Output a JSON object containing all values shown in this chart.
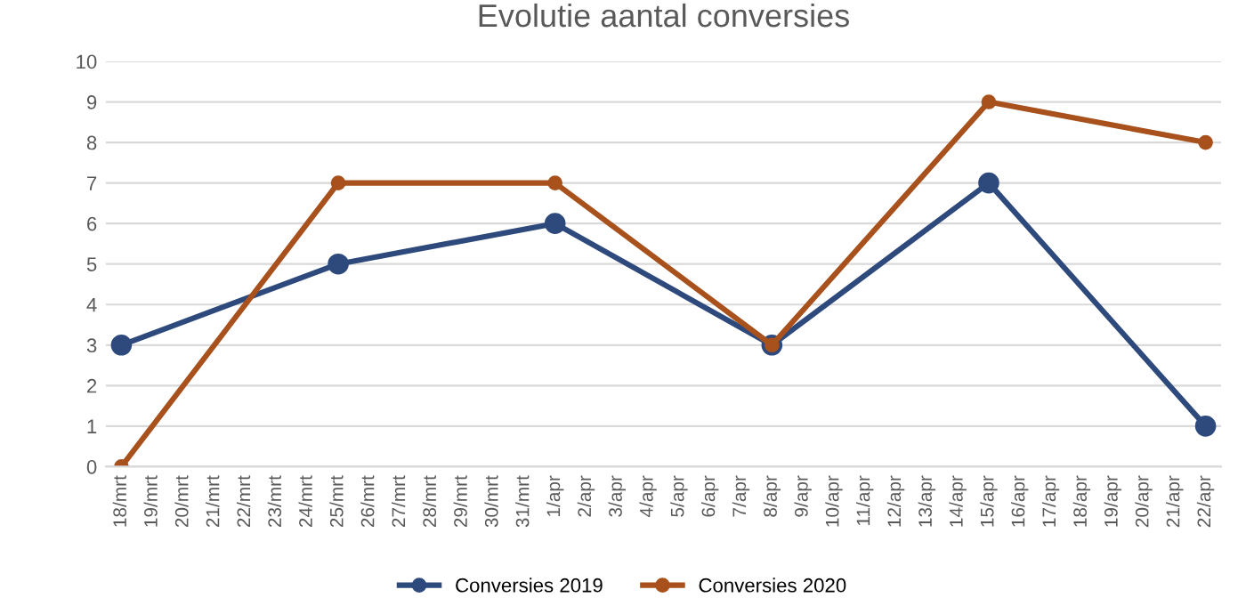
{
  "chart_data": {
    "type": "line",
    "title": "Evolutie aantal conversies",
    "categories": [
      "18/mrt",
      "19/mrt",
      "20/mrt",
      "21/mrt",
      "22/mrt",
      "23/mrt",
      "24/mrt",
      "25/mrt",
      "26/mrt",
      "27/mrt",
      "28/mrt",
      "29/mrt",
      "30/mrt",
      "31/mrt",
      "1/apr",
      "2/apr",
      "3/apr",
      "4/apr",
      "5/apr",
      "6/apr",
      "7/apr",
      "8/apr",
      "9/apr",
      "10/apr",
      "11/apr",
      "12/apr",
      "13/apr",
      "14/apr",
      "15/apr",
      "16/apr",
      "17/apr",
      "18/apr",
      "19/apr",
      "20/apr",
      "21/apr",
      "22/apr"
    ],
    "series": [
      {
        "name": "Conversies 2019",
        "color": "#2e4a7d",
        "values": [
          3,
          null,
          null,
          null,
          null,
          null,
          null,
          5,
          null,
          null,
          null,
          null,
          null,
          null,
          6,
          null,
          null,
          null,
          null,
          null,
          null,
          3,
          null,
          null,
          null,
          null,
          null,
          null,
          7,
          null,
          null,
          null,
          null,
          null,
          null,
          1
        ]
      },
      {
        "name": "Conversies 2020",
        "color": "#a8511c",
        "values": [
          0,
          null,
          null,
          null,
          null,
          null,
          null,
          7,
          null,
          null,
          null,
          null,
          null,
          null,
          7,
          null,
          null,
          null,
          null,
          null,
          null,
          3,
          null,
          null,
          null,
          null,
          null,
          null,
          9,
          null,
          null,
          null,
          null,
          null,
          null,
          8
        ]
      }
    ],
    "ylim": [
      0,
      10
    ],
    "yticks": [
      0,
      1,
      2,
      3,
      4,
      5,
      6,
      7,
      8,
      9,
      10
    ],
    "grid": "y",
    "legend": "bottom",
    "marker": "circle",
    "line_style": "solid"
  }
}
